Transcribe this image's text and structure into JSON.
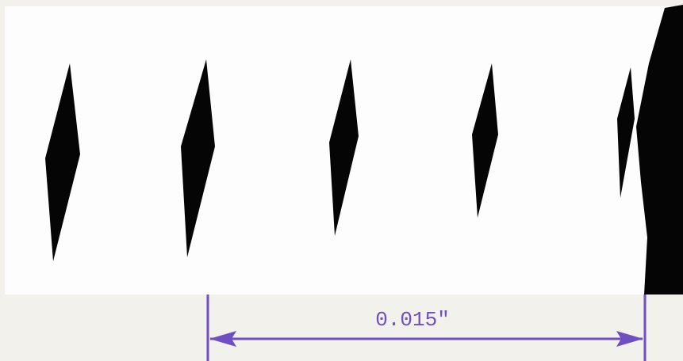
{
  "dimension": {
    "label": "0.015\""
  }
}
